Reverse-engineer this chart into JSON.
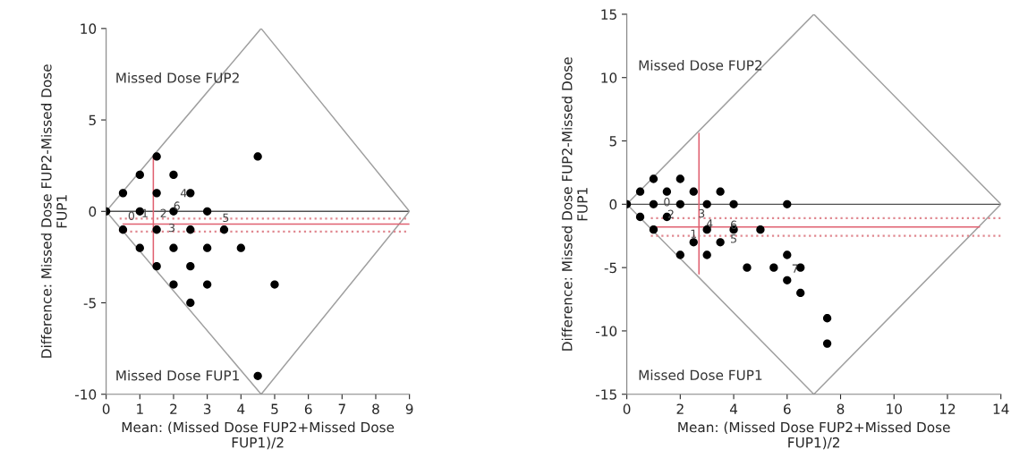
{
  "chart_data": [
    {
      "type": "scatter",
      "xlabel": "Mean: (Missed Dose FUP2+Missed Dose\nFUP1)/2",
      "ylabel": "Difference: Missed Dose FUP2-Missed Dose\nFUP1",
      "xlim": [
        0,
        9
      ],
      "ylim": [
        -10,
        10
      ],
      "xticks": [
        0,
        1,
        2,
        3,
        4,
        5,
        6,
        7,
        8,
        9
      ],
      "yticks": [
        -10,
        -5,
        0,
        5,
        10
      ],
      "grid": false,
      "series": [
        {
          "color": "#000000",
          "marker": "circle",
          "x": [
            0,
            0.5,
            0.5,
            1,
            1,
            1,
            1.5,
            1.5,
            1.5,
            1.5,
            2,
            2,
            2,
            2,
            2.5,
            2.5,
            2.5,
            2.5,
            3,
            3,
            3,
            3.5,
            4,
            4.5,
            4.5,
            5
          ],
          "values": [
            0,
            1,
            -1,
            2,
            0,
            -2,
            3,
            1,
            -1,
            -3,
            2,
            0,
            -2,
            -4,
            1,
            -1,
            -3,
            -5,
            0,
            -2,
            -4,
            -1,
            -2,
            3,
            -9,
            -4
          ]
        },
        {
          "type": "line",
          "color": "#a0a0a0",
          "marker": "none",
          "line_style": "solid",
          "x": [
            0,
            4.6,
            9
          ],
          "values": [
            0,
            10,
            0
          ]
        },
        {
          "type": "line",
          "color": "#a0a0a0",
          "marker": "none",
          "line_style": "solid",
          "x": [
            0,
            4.6,
            9
          ],
          "values": [
            0,
            -10,
            0
          ]
        },
        {
          "type": "line",
          "color": "#e06070",
          "marker": "none",
          "line_style": "solid",
          "x": [
            1.4,
            1.4
          ],
          "values": [
            3,
            -3
          ]
        },
        {
          "type": "line",
          "color": "#e06070",
          "marker": "none",
          "line_style": "solid",
          "x": [
            0.5,
            9
          ],
          "values": [
            -0.7,
            -0.7
          ]
        },
        {
          "type": "line",
          "color": "#e08890",
          "marker": "none",
          "line_style": "dotted",
          "x": [
            0.4,
            9
          ],
          "values": [
            -0.4,
            -0.4
          ]
        },
        {
          "type": "line",
          "color": "#e08890",
          "marker": "none",
          "line_style": "dotted",
          "x": [
            0.4,
            9
          ],
          "values": [
            -1.1,
            -1.1
          ]
        }
      ],
      "ref_lines": [
        {
          "axis": "y",
          "value": 0,
          "color": "#505050"
        }
      ],
      "annotations": [
        "Missed Dose FUP2",
        "Missed Dose FUP1",
        {
          "text": "0",
          "x": 0.75,
          "y": -0.3
        },
        {
          "text": "1",
          "x": 1.15,
          "y": -0.15
        },
        {
          "text": "2",
          "x": 1.7,
          "y": -0.15
        },
        {
          "text": "3",
          "x": 1.95,
          "y": -0.95
        },
        {
          "text": "4",
          "x": 2.3,
          "y": 0.95
        },
        {
          "text": "6",
          "x": 2.1,
          "y": 0.25
        },
        {
          "text": "5",
          "x": 3.55,
          "y": -0.4
        }
      ]
    },
    {
      "type": "scatter",
      "xlabel": "Mean: (Missed Dose FUP2+Missed Dose\nFUP1)/2",
      "ylabel": "Difference: Missed Dose FUP2-Missed Dose\nFUP1",
      "xlim": [
        0,
        14
      ],
      "ylim": [
        -15,
        15
      ],
      "xticks": [
        0,
        2,
        4,
        6,
        8,
        10,
        12,
        14
      ],
      "yticks": [
        -15,
        -10,
        -5,
        0,
        5,
        10,
        15
      ],
      "grid": false,
      "series": [
        {
          "color": "#000000",
          "marker": "circle",
          "x": [
            0,
            1,
            0.5,
            2,
            1.5,
            2.5,
            3.5,
            1,
            2,
            3,
            4,
            6,
            0.5,
            1.5,
            1,
            3,
            4,
            5,
            2.5,
            3.5,
            2,
            3,
            6,
            4.5,
            5.5,
            6.5,
            6,
            6.5,
            7.5,
            7.5
          ],
          "values": [
            0,
            2,
            1,
            2,
            1,
            1,
            1,
            0,
            0,
            0,
            0,
            0,
            -1,
            -1,
            -2,
            -2,
            -2,
            -2,
            -3,
            -3,
            -4,
            -4,
            -4,
            -5,
            -5,
            -5,
            -6,
            -7,
            -9,
            -11
          ]
        },
        {
          "type": "line",
          "color": "#a0a0a0",
          "marker": "none",
          "line_style": "solid",
          "x": [
            0,
            7,
            14
          ],
          "values": [
            0,
            15,
            0
          ]
        },
        {
          "type": "line",
          "color": "#a0a0a0",
          "marker": "none",
          "line_style": "solid",
          "x": [
            0,
            7,
            14
          ],
          "values": [
            0,
            -15,
            0
          ]
        },
        {
          "type": "line",
          "color": "#e06070",
          "marker": "none",
          "line_style": "solid",
          "x": [
            2.7,
            2.7
          ],
          "values": [
            5.6,
            -5.5
          ]
        },
        {
          "type": "line",
          "color": "#e06070",
          "marker": "none",
          "line_style": "solid",
          "x": [
            1,
            13.2
          ],
          "values": [
            -1.8,
            -1.8
          ]
        },
        {
          "type": "line",
          "color": "#e08890",
          "marker": "none",
          "line_style": "dotted",
          "x": [
            0.9,
            14
          ],
          "values": [
            -1.1,
            -1.1
          ]
        },
        {
          "type": "line",
          "color": "#e08890",
          "marker": "none",
          "line_style": "dotted",
          "x": [
            0.9,
            14
          ],
          "values": [
            -2.5,
            -2.5
          ]
        }
      ],
      "ref_lines": [
        {
          "axis": "y",
          "value": 0,
          "color": "#505050"
        }
      ],
      "annotations": [
        "Missed Dose FUP2",
        "Missed Dose FUP1",
        {
          "text": "0",
          "x": 1.5,
          "y": 0.1
        },
        {
          "text": "2",
          "x": 1.65,
          "y": -0.85
        },
        {
          "text": "3",
          "x": 2.8,
          "y": -0.8
        },
        {
          "text": "4",
          "x": 3.1,
          "y": -1.6
        },
        {
          "text": "1",
          "x": 2.5,
          "y": -2.4
        },
        {
          "text": "6",
          "x": 4.0,
          "y": -1.7
        },
        {
          "text": "5",
          "x": 4.0,
          "y": -2.8
        },
        {
          "text": "7",
          "x": 6.3,
          "y": -5.15
        }
      ]
    }
  ]
}
